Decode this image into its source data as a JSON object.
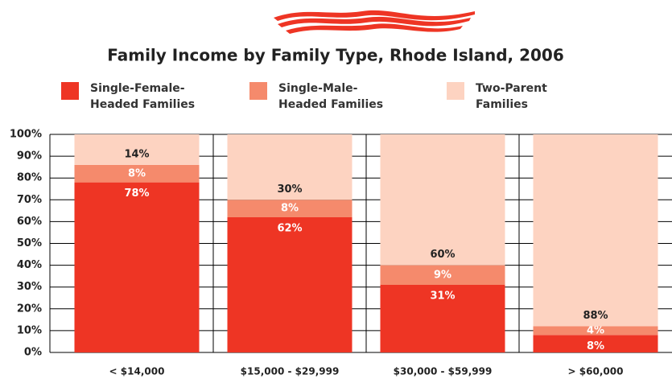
{
  "chart_data": {
    "type": "stacked-bar",
    "title": "Family Income by Family Type, Rhode Island, 2006",
    "categories": [
      "< $14,000",
      "$15,000 - $29,999",
      "$30,000 - $59,999",
      "> $60,000"
    ],
    "series": [
      {
        "name": "Single-Female-Headed Families",
        "color": "#ee3524",
        "values": [
          78,
          62,
          31,
          8
        ],
        "value_labels": [
          "78%",
          "62%",
          "31%",
          "8%"
        ]
      },
      {
        "name": "Single-Male-Headed Families",
        "color": "#f58a6c",
        "values": [
          8,
          8,
          9,
          4
        ],
        "value_labels": [
          "8%",
          "8%",
          "9%",
          "4%"
        ]
      },
      {
        "name": "Two-Parent Families",
        "color": "#fdd3c1",
        "values": [
          14,
          30,
          60,
          88
        ],
        "value_labels": [
          "14%",
          "30%",
          "60%",
          "88%"
        ]
      }
    ],
    "ylim": [
      0,
      100
    ],
    "yticks": [
      {
        "value": 0,
        "label": "0%"
      },
      {
        "value": 10,
        "label": "10%"
      },
      {
        "value": 20,
        "label": "20%"
      },
      {
        "value": 30,
        "label": "30%"
      },
      {
        "value": 40,
        "label": "40%"
      },
      {
        "value": 50,
        "label": "50%"
      },
      {
        "value": 60,
        "label": "60%"
      },
      {
        "value": 70,
        "label": "70%"
      },
      {
        "value": 80,
        "label": "80%"
      },
      {
        "value": 90,
        "label": "90%"
      },
      {
        "value": 100,
        "label": "100%"
      }
    ],
    "grid": true
  }
}
